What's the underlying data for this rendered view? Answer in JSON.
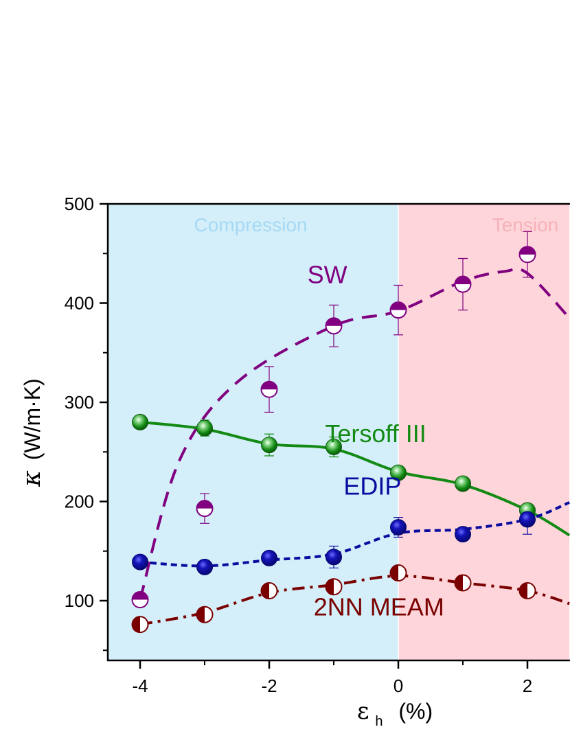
{
  "chart_data": {
    "type": "scatter",
    "xlabel_main": "ε",
    "xlabel_sub": "h",
    "xlabel_unit": "(%)",
    "ylabel_main": "κ",
    "ylabel_unit": "(W/m·K)",
    "xlim": [
      -4.5,
      2.65
    ],
    "ylim": [
      40,
      500
    ],
    "xticks": [
      -4,
      -2,
      0,
      2
    ],
    "xticks_minor": [
      -3,
      -1,
      1
    ],
    "yticks": [
      100,
      200,
      300,
      400,
      500
    ],
    "yticks_minor": [
      50,
      150,
      250,
      350,
      450
    ],
    "grid": false,
    "regions": [
      {
        "label": "Compression",
        "from": -4.5,
        "to": 0,
        "color": "#d4effa",
        "text_color": "#a6d9f3"
      },
      {
        "label": "Tension",
        "from": 0,
        "to": 2.65,
        "color": "#fdd5da",
        "text_color": "#f6b2b9"
      }
    ],
    "series": [
      {
        "name": "SW",
        "color": "#800080",
        "line_style": "dashed",
        "marker": "half-top",
        "label_at": [
          -1.1,
          420
        ],
        "x": [
          -4,
          -3,
          -2,
          -1,
          0,
          1,
          2
        ],
        "y": [
          101,
          193,
          313,
          377,
          393,
          419,
          449
        ],
        "err": [
          7,
          15,
          23,
          21,
          25,
          26,
          23
        ],
        "curve": [
          [
            -4,
            101
          ],
          [
            -3.4,
            240
          ],
          [
            -2.5,
            320
          ],
          [
            -1,
            377
          ],
          [
            0,
            392
          ],
          [
            1,
            422
          ],
          [
            1.65,
            432
          ],
          [
            2,
            430
          ],
          [
            2.65,
            385
          ]
        ]
      },
      {
        "name": "Tersoff III",
        "color": "#138a13",
        "line_style": "solid",
        "marker": "filled-shiny",
        "label_at": [
          -0.35,
          260
        ],
        "x": [
          -4,
          -3,
          -2,
          -1,
          0,
          1,
          2
        ],
        "y": [
          280,
          274,
          257,
          255,
          229,
          218,
          191
        ],
        "err": [
          3,
          8,
          11,
          10,
          4,
          4,
          3
        ],
        "curve": [
          [
            -4,
            280
          ],
          [
            -3,
            273
          ],
          [
            -2,
            258
          ],
          [
            -1,
            253
          ],
          [
            0,
            230
          ],
          [
            1,
            217
          ],
          [
            2,
            191
          ],
          [
            2.65,
            166
          ]
        ]
      },
      {
        "name": "EDIP",
        "color": "#0b0ba0",
        "line_style": "dotted",
        "marker": "filled",
        "label_at": [
          -0.4,
          207
        ],
        "x": [
          -4,
          -3,
          -2,
          -1,
          0,
          1,
          2
        ],
        "y": [
          139,
          134,
          143,
          144,
          174,
          167,
          182
        ],
        "err": [
          3,
          3,
          4,
          11,
          10,
          5,
          15
        ],
        "curve": [
          [
            -4,
            139
          ],
          [
            -3,
            135
          ],
          [
            -2,
            141
          ],
          [
            -1,
            147
          ],
          [
            0,
            168
          ],
          [
            1,
            172
          ],
          [
            2,
            182
          ],
          [
            2.65,
            199
          ]
        ]
      },
      {
        "name": "2NN MEAM",
        "color": "#7a0000",
        "line_style": "dashdot",
        "marker": "half-left",
        "label_at": [
          -0.3,
          85
        ],
        "x": [
          -4,
          -3,
          -2,
          -1,
          0,
          1,
          2
        ],
        "y": [
          76,
          86,
          110,
          114,
          128,
          118,
          110
        ],
        "err": [
          3,
          3,
          5,
          5,
          4,
          7,
          4
        ],
        "curve": [
          [
            -4,
            76
          ],
          [
            -3,
            88
          ],
          [
            -2,
            108
          ],
          [
            -1,
            116
          ],
          [
            0,
            125
          ],
          [
            1,
            118
          ],
          [
            2,
            110
          ],
          [
            2.65,
            97
          ]
        ]
      }
    ]
  }
}
